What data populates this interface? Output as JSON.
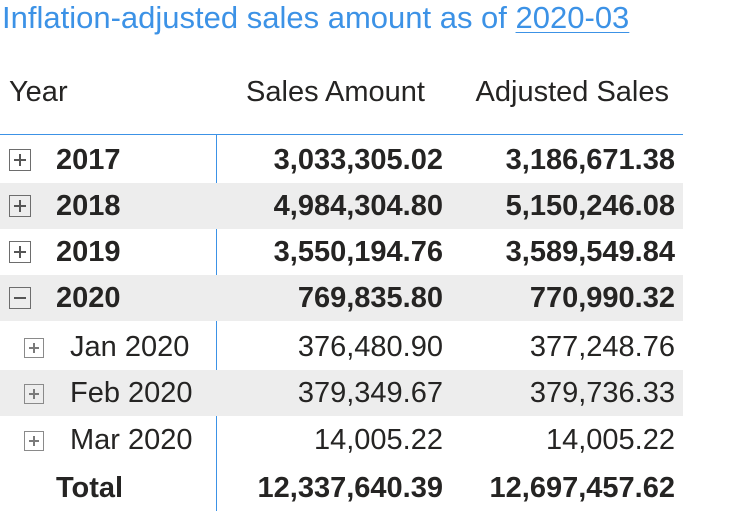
{
  "title": {
    "text": "Inflation-adjusted sales amount as of ",
    "date": "2020-03"
  },
  "columns": {
    "year": "Year",
    "sales": "Sales Amount",
    "adjusted": "Adjusted Sales"
  },
  "rows": [
    {
      "label": "2017",
      "sales": "3,033,305.02",
      "adjusted": "3,186,671.38",
      "expander": "plus-icon"
    },
    {
      "label": "2018",
      "sales": "4,984,304.80",
      "adjusted": "5,150,246.08",
      "expander": "plus-icon"
    },
    {
      "label": "2019",
      "sales": "3,550,194.76",
      "adjusted": "3,589,549.84",
      "expander": "plus-icon"
    },
    {
      "label": "2020",
      "sales": "769,835.80",
      "adjusted": "770,990.32",
      "expander": "minus-icon"
    },
    {
      "label": "Jan 2020",
      "sales": "376,480.90",
      "adjusted": "377,248.76",
      "expander": "plus-icon"
    },
    {
      "label": "Feb 2020",
      "sales": "379,349.67",
      "adjusted": "379,736.33",
      "expander": "plus-icon"
    },
    {
      "label": "Mar 2020",
      "sales": "14,005.22",
      "adjusted": "14,005.22",
      "expander": "plus-icon"
    }
  ],
  "total": {
    "label": "Total",
    "sales": "12,337,640.39",
    "adjusted": "12,697,457.62"
  },
  "colors": {
    "title": "#3c92e6",
    "rule": "#3c92e6",
    "row_shade": "#ededed",
    "text": "#252423"
  }
}
